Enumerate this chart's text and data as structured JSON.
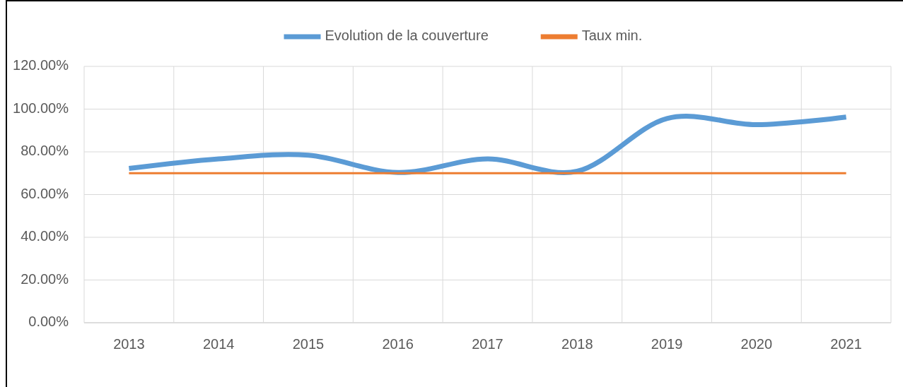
{
  "chart_data": {
    "type": "line",
    "categories": [
      "2013",
      "2014",
      "2015",
      "2016",
      "2017",
      "2018",
      "2019",
      "2020",
      "2021"
    ],
    "series": [
      {
        "name": "Evolution de la couverture",
        "color": "#5b9bd5",
        "values": [
          72.2,
          76.7,
          78.4,
          70.3,
          76.7,
          70.9,
          95.6,
          92.7,
          96.3
        ]
      },
      {
        "name": "Taux min.",
        "color": "#ed7d31",
        "values": [
          70,
          70,
          70,
          70,
          70,
          70,
          70,
          70,
          70
        ]
      }
    ],
    "ylim": [
      0,
      120
    ],
    "yticks": [
      {
        "value": 0,
        "label": "0.00%"
      },
      {
        "value": 20,
        "label": "20.00%"
      },
      {
        "value": 40,
        "label": "40.00%"
      },
      {
        "value": 60,
        "label": "60.00%"
      },
      {
        "value": 80,
        "label": "80.00%"
      },
      {
        "value": 100,
        "label": "100.00%"
      },
      {
        "value": 120,
        "label": "120.00%"
      }
    ],
    "grid": true,
    "legend": "top"
  }
}
